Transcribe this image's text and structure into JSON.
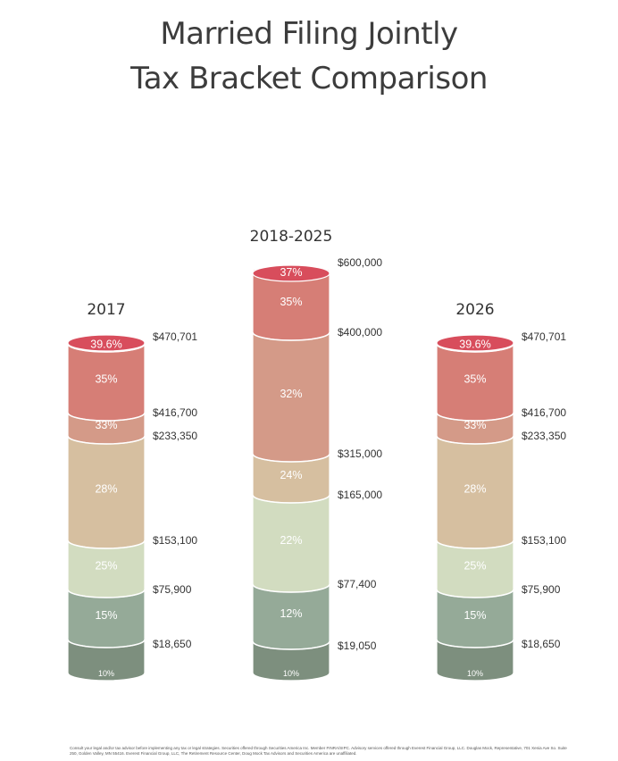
{
  "title_line1": "Married Filing Jointly",
  "title_line2": "Tax Bracket Comparison",
  "chart_data": {
    "type": "bar",
    "subtype": "stacked-cylinder",
    "title": "Married Filing Jointly Tax Bracket Comparison",
    "columns": [
      {
        "label": "2017",
        "brackets": [
          {
            "rate": "10%",
            "upper": "$18,650",
            "upper_value": 18650
          },
          {
            "rate": "15%",
            "upper": "$75,900",
            "upper_value": 75900
          },
          {
            "rate": "25%",
            "upper": "$153,100",
            "upper_value": 153100
          },
          {
            "rate": "28%",
            "upper": "$233,350",
            "upper_value": 233350
          },
          {
            "rate": "33%",
            "upper": "$416,700",
            "upper_value": 416700
          },
          {
            "rate": "35%",
            "upper": "$470,701",
            "upper_value": 470701
          },
          {
            "rate": "39.6%",
            "upper": "",
            "upper_value": null
          }
        ]
      },
      {
        "label": "2018-2025",
        "brackets": [
          {
            "rate": "10%",
            "upper": "$19,050",
            "upper_value": 19050
          },
          {
            "rate": "12%",
            "upper": "$77,400",
            "upper_value": 77400
          },
          {
            "rate": "22%",
            "upper": "$165,000",
            "upper_value": 165000
          },
          {
            "rate": "24%",
            "upper": "$315,000",
            "upper_value": 315000
          },
          {
            "rate": "32%",
            "upper": "$400,000",
            "upper_value": 400000
          },
          {
            "rate": "35%",
            "upper": "$600,000",
            "upper_value": 600000
          },
          {
            "rate": "37%",
            "upper": "",
            "upper_value": null
          }
        ]
      },
      {
        "label": "2026",
        "brackets": [
          {
            "rate": "10%",
            "upper": "$18,650",
            "upper_value": 18650
          },
          {
            "rate": "15%",
            "upper": "$75,900",
            "upper_value": 75900
          },
          {
            "rate": "25%",
            "upper": "$153,100",
            "upper_value": 153100
          },
          {
            "rate": "28%",
            "upper": "$233,350",
            "upper_value": 233350
          },
          {
            "rate": "33%",
            "upper": "$416,700",
            "upper_value": 416700
          },
          {
            "rate": "35%",
            "upper": "$470,701",
            "upper_value": 470701
          },
          {
            "rate": "39.6%",
            "upper": "",
            "upper_value": null
          }
        ]
      }
    ],
    "colors": [
      "#7d8f7e",
      "#95aa98",
      "#d2dcc0",
      "#d6bfa0",
      "#d49a88",
      "#d67e76",
      "#df4f5f"
    ]
  },
  "disclaimer": "Consult your legal and/or tax advisor before implementing any tax or legal strategies.  Securities offered through Securities America Inc.  Member FINRA/SIPC. Advisory services offered through Everest Financial Group, LLC. Douglas Mock, Representative, 701 Xenia Ave So. Suite 250, Golden Valley, MN  55416.  Everest Financial Group, LLC, The Retirement Resource Center, Doug Mock Tax Advisors and Securities America are unaffiliated."
}
